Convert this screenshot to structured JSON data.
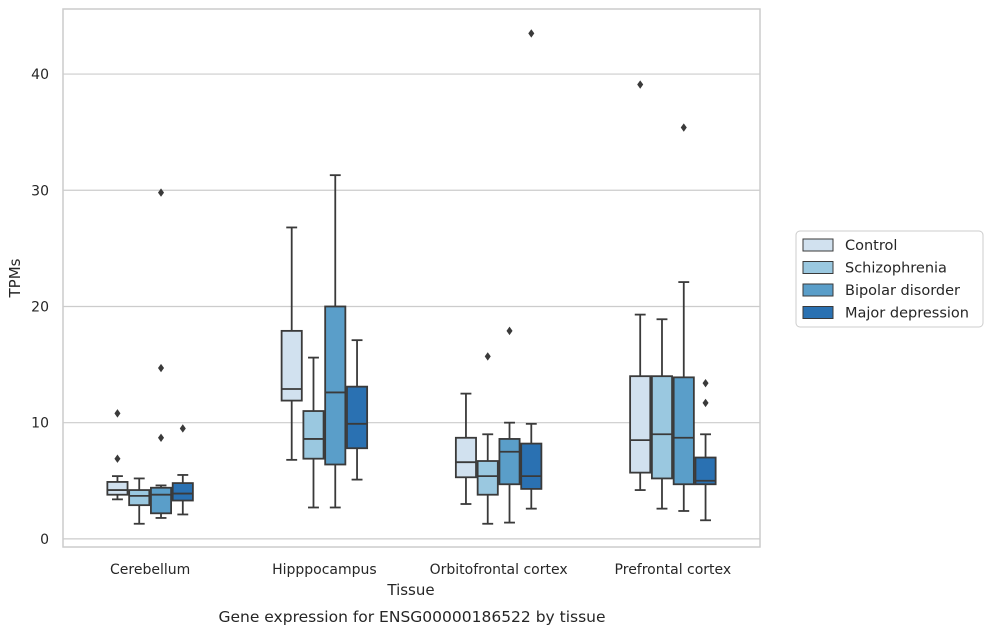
{
  "chart_data": {
    "type": "box",
    "xlabel": "Tissue",
    "ylabel": "TPMs",
    "caption": "Gene expression for ENSG00000186522 by tissue",
    "ylim": [
      -0.7,
      45.6
    ],
    "yticks": [
      0,
      10,
      20,
      30,
      40
    ],
    "grid": "horizontal",
    "legend_position": "right",
    "categories": [
      "Cerebellum",
      "Hipppocampus",
      "Orbitofrontal cortex",
      "Prefrontal cortex"
    ],
    "series": [
      {
        "name": "Control",
        "color": "#d1e1ef",
        "boxes": [
          {
            "whislo": 3.4,
            "q1": 3.8,
            "med": 4.2,
            "q3": 4.9,
            "whishi": 5.4,
            "fliers": [
              6.9,
              10.8
            ]
          },
          {
            "whislo": 6.8,
            "q1": 11.9,
            "med": 12.9,
            "q3": 17.9,
            "whishi": 26.8,
            "fliers": []
          },
          {
            "whislo": 3.0,
            "q1": 5.3,
            "med": 6.6,
            "q3": 8.7,
            "whishi": 12.5,
            "fliers": []
          },
          {
            "whislo": 4.2,
            "q1": 5.7,
            "med": 8.5,
            "q3": 14.0,
            "whishi": 19.3,
            "fliers": [
              39.1
            ]
          }
        ]
      },
      {
        "name": "Schizophrenia",
        "color": "#9ac8e0",
        "boxes": [
          {
            "whislo": 1.3,
            "q1": 2.9,
            "med": 3.7,
            "q3": 4.2,
            "whishi": 5.2,
            "fliers": []
          },
          {
            "whislo": 2.7,
            "q1": 6.9,
            "med": 8.6,
            "q3": 11.0,
            "whishi": 15.6,
            "fliers": []
          },
          {
            "whislo": 1.3,
            "q1": 3.8,
            "med": 5.4,
            "q3": 6.7,
            "whishi": 9.0,
            "fliers": [
              15.7
            ]
          },
          {
            "whislo": 2.6,
            "q1": 5.2,
            "med": 9.0,
            "q3": 14.0,
            "whishi": 18.9,
            "fliers": []
          }
        ]
      },
      {
        "name": "Bipolar disorder",
        "color": "#5a9ec9",
        "boxes": [
          {
            "whislo": 1.8,
            "q1": 2.2,
            "med": 3.8,
            "q3": 4.4,
            "whishi": 4.6,
            "fliers": [
              8.7,
              14.7,
              29.8
            ]
          },
          {
            "whislo": 2.7,
            "q1": 6.4,
            "med": 12.6,
            "q3": 20.0,
            "whishi": 31.3,
            "fliers": []
          },
          {
            "whislo": 1.4,
            "q1": 4.7,
            "med": 7.5,
            "q3": 8.6,
            "whishi": 10.0,
            "fliers": [
              17.9
            ]
          },
          {
            "whislo": 2.4,
            "q1": 4.7,
            "med": 8.7,
            "q3": 13.9,
            "whishi": 22.1,
            "fliers": [
              35.4
            ]
          }
        ]
      },
      {
        "name": "Major depression",
        "color": "#2a71b2",
        "boxes": [
          {
            "whislo": 2.1,
            "q1": 3.3,
            "med": 3.9,
            "q3": 4.8,
            "whishi": 5.5,
            "fliers": [
              9.5
            ]
          },
          {
            "whislo": 5.1,
            "q1": 7.8,
            "med": 9.9,
            "q3": 13.1,
            "whishi": 17.1,
            "fliers": []
          },
          {
            "whislo": 2.6,
            "q1": 4.3,
            "med": 5.4,
            "q3": 8.2,
            "whishi": 9.9,
            "fliers": [
              43.5
            ]
          },
          {
            "whislo": 1.6,
            "q1": 4.7,
            "med": 5.0,
            "q3": 7.0,
            "whishi": 9.0,
            "fliers": [
              11.7,
              13.4
            ]
          }
        ]
      }
    ]
  },
  "colors": {
    "box_edge": "#3a3a3a",
    "grid": "#cccccc",
    "axes_frame": "#cccccc"
  }
}
